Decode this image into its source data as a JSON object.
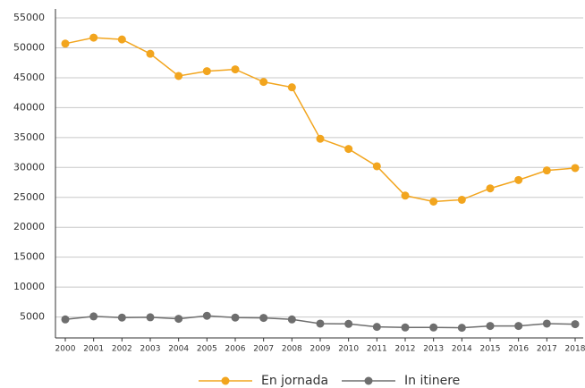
{
  "chart_data": {
    "type": "line",
    "categories": [
      "2000",
      "2001",
      "2002",
      "2003",
      "2004",
      "2005",
      "2006",
      "2007",
      "2008",
      "2009",
      "2010",
      "2011",
      "2012",
      "2013",
      "2014",
      "2015",
      "2016",
      "2017",
      "2018"
    ],
    "series": [
      {
        "name": "En jornada",
        "color": "#f2a51e",
        "values": [
          50700,
          51700,
          51400,
          49000,
          45300,
          46100,
          46400,
          44300,
          43400,
          34800,
          33100,
          30200,
          25300,
          24300,
          24600,
          26500,
          27900,
          29500,
          29900
        ]
      },
      {
        "name": "In itinere",
        "color": "#6e6e6e",
        "values": [
          4600,
          5100,
          4900,
          4950,
          4700,
          5200,
          4900,
          4850,
          4600,
          3900,
          3850,
          3350,
          3250,
          3250,
          3200,
          3500,
          3500,
          3900,
          3800
        ]
      }
    ],
    "ylim": [
      1500,
      56500
    ],
    "yticks": [
      5000,
      10000,
      15000,
      20000,
      25000,
      30000,
      35000,
      40000,
      45000,
      50000,
      55000
    ],
    "grid": true
  }
}
